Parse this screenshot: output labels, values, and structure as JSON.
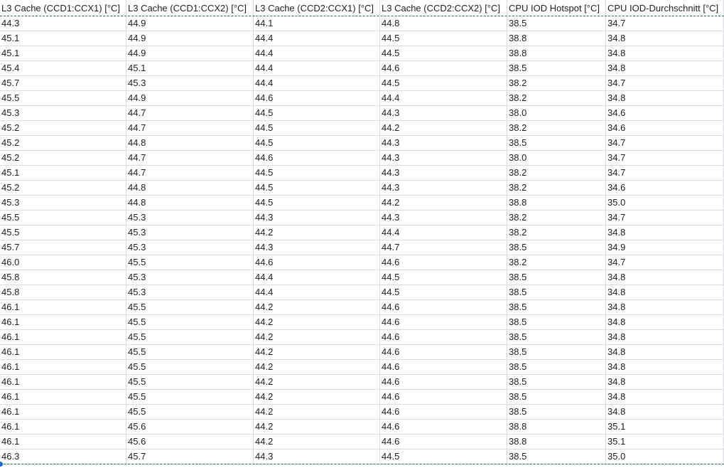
{
  "sheet": {
    "columns": [
      "L3 Cache (CCD1:CCX1) [°C]",
      "L3 Cache (CCD1:CCX2) [°C]",
      "L3 Cache (CCD2:CCX1) [°C]",
      "L3 Cache (CCD2:CCX2) [°C]",
      "CPU IOD Hotspot [°C]",
      "CPU IOD-Durchschnitt [°C]"
    ],
    "rows": [
      [
        "44.3",
        "44.9",
        "44.1",
        "44.8",
        "38.5",
        "34.7"
      ],
      [
        "45.1",
        "44.9",
        "44.4",
        "44.5",
        "38.8",
        "34.8"
      ],
      [
        "45.1",
        "44.9",
        "44.4",
        "44.5",
        "38.8",
        "34.8"
      ],
      [
        "45.4",
        "45.1",
        "44.4",
        "44.6",
        "38.5",
        "34.8"
      ],
      [
        "45.7",
        "45.3",
        "44.4",
        "44.5",
        "38.2",
        "34.7"
      ],
      [
        "45.5",
        "44.9",
        "44.6",
        "44.4",
        "38.2",
        "34.8"
      ],
      [
        "45.3",
        "44.7",
        "44.5",
        "44.3",
        "38.0",
        "34.6"
      ],
      [
        "45.2",
        "44.7",
        "44.5",
        "44.2",
        "38.2",
        "34.6"
      ],
      [
        "45.2",
        "44.8",
        "44.5",
        "44.3",
        "38.5",
        "34.7"
      ],
      [
        "45.2",
        "44.7",
        "44.6",
        "44.3",
        "38.0",
        "34.7"
      ],
      [
        "45.1",
        "44.7",
        "44.5",
        "44.3",
        "38.2",
        "34.7"
      ],
      [
        "45.2",
        "44.8",
        "44.5",
        "44.3",
        "38.2",
        "34.6"
      ],
      [
        "45.3",
        "44.8",
        "44.5",
        "44.2",
        "38.8",
        "35.0"
      ],
      [
        "45.5",
        "45.3",
        "44.3",
        "44.3",
        "38.2",
        "34.7"
      ],
      [
        "45.5",
        "45.3",
        "44.2",
        "44.4",
        "38.2",
        "34.8"
      ],
      [
        "45.7",
        "45.3",
        "44.3",
        "44.7",
        "38.5",
        "34.9"
      ],
      [
        "46.0",
        "45.5",
        "44.6",
        "44.6",
        "38.2",
        "34.7"
      ],
      [
        "45.8",
        "45.3",
        "44.4",
        "44.5",
        "38.5",
        "34.8"
      ],
      [
        "45.8",
        "45.3",
        "44.4",
        "44.5",
        "38.5",
        "34.8"
      ],
      [
        "46.1",
        "45.5",
        "44.2",
        "44.6",
        "38.5",
        "34.8"
      ],
      [
        "46.1",
        "45.5",
        "44.2",
        "44.6",
        "38.5",
        "34.8"
      ],
      [
        "46.1",
        "45.5",
        "44.2",
        "44.6",
        "38.5",
        "34.8"
      ],
      [
        "46.1",
        "45.5",
        "44.2",
        "44.6",
        "38.5",
        "34.8"
      ],
      [
        "46.1",
        "45.5",
        "44.2",
        "44.6",
        "38.5",
        "34.8"
      ],
      [
        "46.1",
        "45.5",
        "44.2",
        "44.6",
        "38.5",
        "34.8"
      ],
      [
        "46.1",
        "45.5",
        "44.2",
        "44.6",
        "38.5",
        "34.8"
      ],
      [
        "46.1",
        "45.5",
        "44.2",
        "44.6",
        "38.5",
        "34.8"
      ],
      [
        "46.1",
        "45.6",
        "44.2",
        "44.6",
        "38.8",
        "35.1"
      ],
      [
        "46.1",
        "45.6",
        "44.2",
        "44.6",
        "38.8",
        "35.1"
      ],
      [
        "46.3",
        "45.7",
        "44.3",
        "44.5",
        "38.5",
        "35.0"
      ]
    ]
  },
  "colors": {
    "selection_marquee": "#217346",
    "fill_handle": "#1a66d2",
    "gridline": "#dadcdf"
  }
}
